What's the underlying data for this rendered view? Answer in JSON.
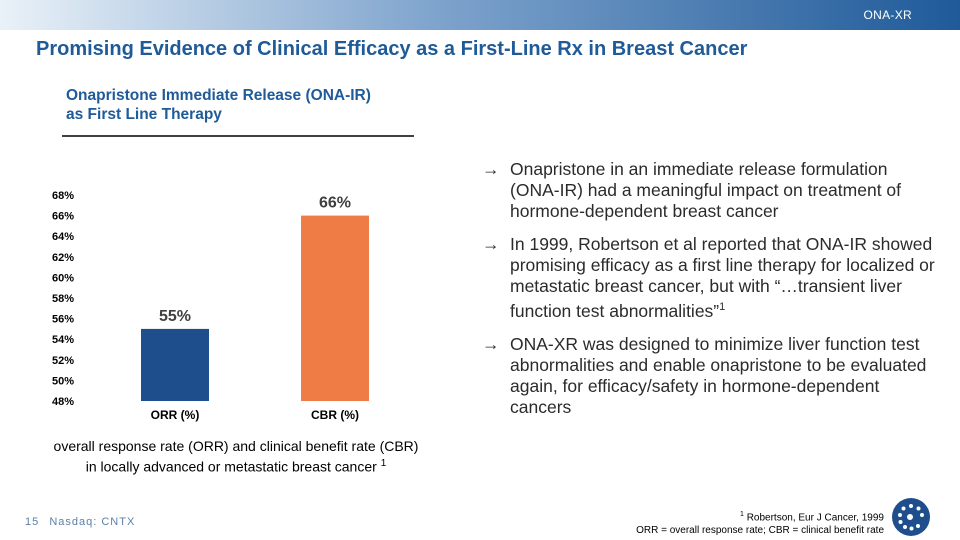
{
  "header": {
    "tag": "ONA-XR",
    "title": "Promising Evidence of Clinical Efficacy as a First-Line Rx in Breast Cancer"
  },
  "subtitle": {
    "line1": "Onapristone Immediate Release (ONA-IR)",
    "line2": "as First Line Therapy"
  },
  "chart_data": {
    "type": "bar",
    "categories": [
      "ORR (%)",
      "CBR (%)"
    ],
    "values": [
      55,
      66
    ],
    "value_labels": [
      "55%",
      "66%"
    ],
    "colors": [
      "#1f4e8c",
      "#ef7c45"
    ],
    "ylim": [
      48,
      68
    ],
    "yticks": [
      "48%",
      "50%",
      "52%",
      "54%",
      "56%",
      "58%",
      "60%",
      "62%",
      "64%",
      "66%",
      "68%"
    ],
    "grid": false
  },
  "caption": {
    "line1": "overall response rate (ORR) and clinical benefit rate (CBR)",
    "line2": "in locally advanced or metastatic breast cancer",
    "ref": "1"
  },
  "bullets": [
    {
      "text": "Onapristone in an immediate release formulation (ONA-IR) had a meaningful impact on treatment of hormone-dependent breast cancer",
      "sup": ""
    },
    {
      "text": "In 1999, Robertson et al reported that ONA-IR showed promising efficacy as a first line therapy for localized or metastatic breast cancer, but with “…transient liver function test abnormalities”",
      "sup": "1"
    },
    {
      "text": "ONA-XR was designed to minimize liver function test abnormalities and enable onapristone to be evaluated again, for efficacy/safety in hormone-dependent cancers",
      "sup": ""
    }
  ],
  "footnote": {
    "ref": "1",
    "line1": "Robertson, Eur J Cancer, 1999",
    "line2": "ORR = overall response rate; CBR = clinical benefit rate"
  },
  "footer": {
    "page": "15",
    "ticker": "Nasdaq: CNTX"
  },
  "icons": {
    "bullet": "right-arrow-icon",
    "logo": "company-logo"
  },
  "theme": {
    "brand_blue": "#1f5a99"
  }
}
